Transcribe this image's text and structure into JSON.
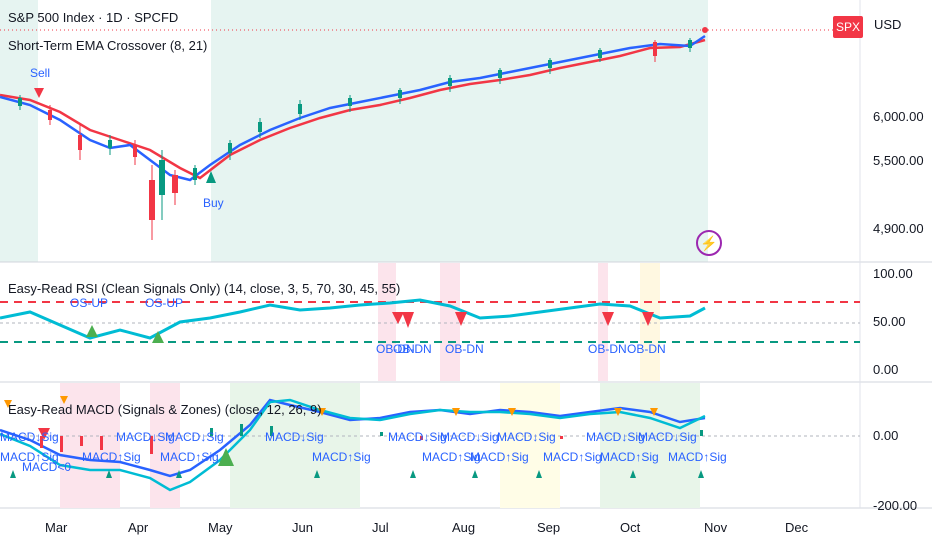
{
  "header": {
    "symbol_title": "S&P 500 Index · 1D · SPCFD",
    "indicator1": "Short-Term EMA Crossover (8, 21)",
    "badge": "SPX",
    "currency": "USD"
  },
  "price_panel": {
    "y_ticks": [
      "6,000.00",
      "5,500.00",
      "4,900.00"
    ],
    "signals": {
      "sell": "Sell",
      "buy": "Buy"
    },
    "colors": {
      "fast_ema": "#2962ff",
      "slow_ema": "#f23645",
      "bg_zone": "#e6f4f1"
    }
  },
  "rsi_panel": {
    "title": "Easy-Read RSI (Clean Signals Only) (14, close, 3, 5, 70, 30, 45, 55)",
    "y_ticks": [
      "100.00",
      "50.00",
      "0.00"
    ],
    "labels_up": [
      "OS-UP",
      "OS-UP"
    ],
    "labels_dn": [
      "OB-DN",
      "OB-DN",
      "OB-DN",
      "OB-DN",
      "OB-DN"
    ]
  },
  "macd_panel": {
    "title": "Easy-Read MACD (Signals & Zones) (close, 12, 26, 9)",
    "y_ticks": [
      "0.00",
      "-200.00"
    ],
    "labels_top": [
      "MACD↓Sig",
      "MACD↓Sig",
      "MACD↓Sig",
      "MACD↓Sig",
      "MACD↓Sig",
      "MACD↓Sig",
      "MACD↓Sig",
      "MACD↓Sig",
      "MACD↓Sig"
    ],
    "labels_bottom": [
      "MACD↑Sig",
      "MACD↑Sig",
      "MACD↑Sig",
      "MACD↑Sig",
      "MACD↑Sig",
      "MACD↑Sig",
      "MACD↑Sig",
      "MACD↑Sig",
      "MACD↑Sig"
    ],
    "label_zero": "MACD<0"
  },
  "x_axis": {
    "months": [
      "Mar",
      "Apr",
      "May",
      "Jun",
      "Jul",
      "Aug",
      "Sep",
      "Oct",
      "Nov",
      "Dec"
    ]
  }
}
